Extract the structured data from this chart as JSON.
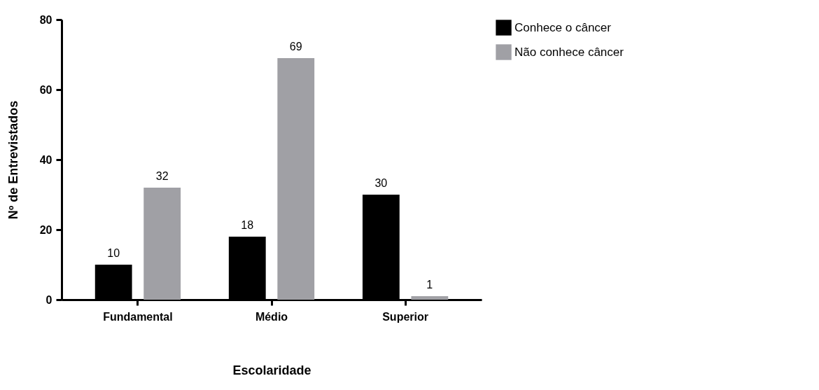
{
  "chart_data": {
    "type": "bar",
    "xlabel": "Escolaridade",
    "ylabel": "Nº de Entrevistados",
    "categories": [
      "Fundamental",
      "Médio",
      "Superior"
    ],
    "series": [
      {
        "name": "Conhece o câncer",
        "color": "#000000",
        "values": [
          10,
          18,
          30
        ]
      },
      {
        "name": "Não conhece câncer",
        "color": "#a0a0a5",
        "values": [
          32,
          69,
          1
        ]
      }
    ],
    "ylim": [
      0,
      80
    ],
    "yticks": [
      0,
      20,
      40,
      60,
      80
    ],
    "grid": false,
    "legend": "top right",
    "data_labels": true
  }
}
